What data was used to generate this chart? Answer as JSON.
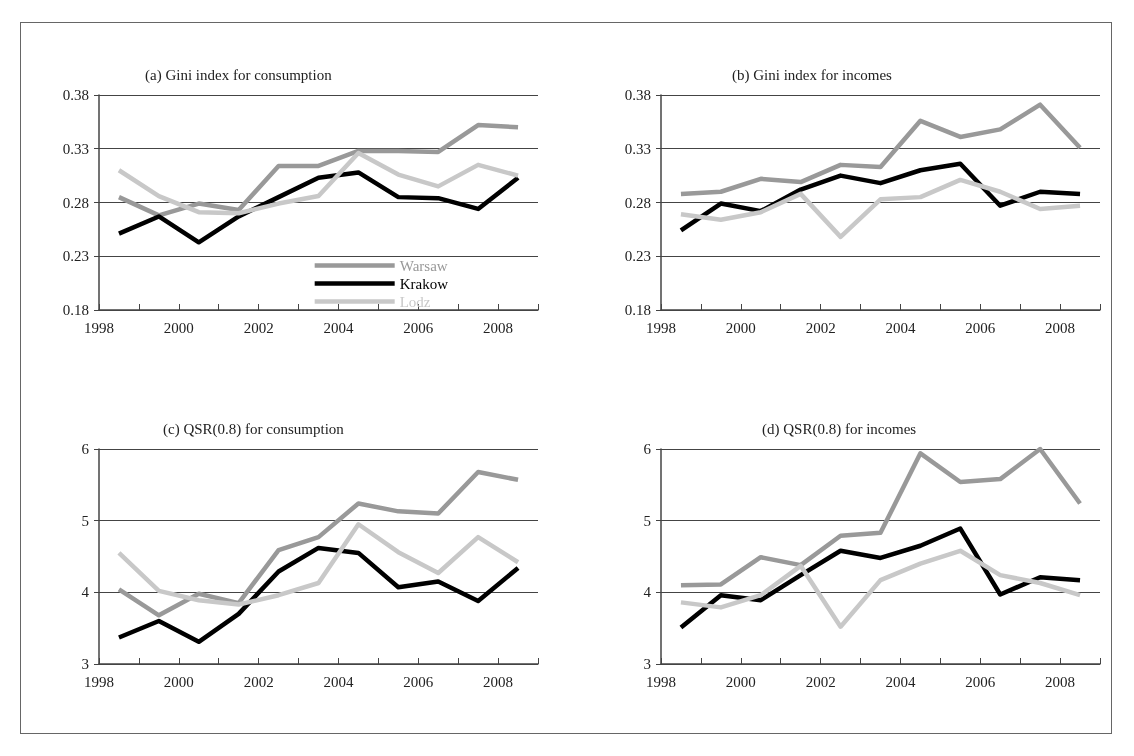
{
  "chart_data": [
    {
      "type": "line",
      "title": "(a) Gini index for consumption",
      "x": [
        1998.5,
        1999.5,
        2000.5,
        2001.5,
        2002.5,
        2003.5,
        2004.5,
        2005.5,
        2006.5,
        2007.5,
        2008.5
      ],
      "xlim": [
        1998,
        2009
      ],
      "xticks": [
        1998,
        {
          "value": 1999,
          "label": null
        },
        2000,
        {
          "value": 2001,
          "label": null
        },
        2002,
        {
          "value": 2003,
          "label": null
        },
        2004,
        {
          "value": 2005,
          "label": null
        },
        2006,
        {
          "value": 2007,
          "label": null
        },
        2008,
        {
          "value": 2009,
          "label": null
        }
      ],
      "ylim": [
        0.18,
        0.38
      ],
      "yticks": [
        0.18,
        0.23,
        0.28,
        0.33,
        0.38
      ],
      "grid": "y",
      "legend": "bottom right",
      "marker": "none",
      "line_style": "solid",
      "series": [
        {
          "name": "Warsaw",
          "color": "#999999",
          "values": [
            0.285,
            0.268,
            0.279,
            0.273,
            0.314,
            0.314,
            0.328,
            0.328,
            0.327,
            0.352,
            0.35
          ]
        },
        {
          "name": "Krakow",
          "color": "#000000",
          "values": [
            0.251,
            0.267,
            0.243,
            0.267,
            0.285,
            0.303,
            0.308,
            0.285,
            0.284,
            0.274,
            0.303
          ]
        },
        {
          "name": "Lodz",
          "color": "#c8c8c8",
          "values": [
            0.31,
            0.286,
            0.271,
            0.27,
            0.279,
            0.286,
            0.326,
            0.306,
            0.295,
            0.315,
            0.305
          ]
        }
      ]
    },
    {
      "type": "line",
      "title": "(b) Gini index for incomes",
      "x": [
        1998.5,
        1999.5,
        2000.5,
        2001.5,
        2002.5,
        2003.5,
        2004.5,
        2005.5,
        2006.5,
        2007.5,
        2008.5
      ],
      "xlim": [
        1998,
        2009
      ],
      "xticks": [
        1998,
        {
          "value": 1999,
          "label": null
        },
        2000,
        {
          "value": 2001,
          "label": null
        },
        2002,
        {
          "value": 2003,
          "label": null
        },
        2004,
        {
          "value": 2005,
          "label": null
        },
        2006,
        {
          "value": 2007,
          "label": null
        },
        2008,
        {
          "value": 2009,
          "label": null
        }
      ],
      "ylim": [
        0.18,
        0.38
      ],
      "yticks": [
        0.18,
        0.23,
        0.28,
        0.33,
        0.38
      ],
      "grid": "y",
      "marker": "none",
      "line_style": "solid",
      "series": [
        {
          "color": "#999999",
          "values": [
            0.288,
            0.29,
            0.302,
            0.299,
            0.315,
            0.313,
            0.356,
            0.341,
            0.348,
            0.371,
            0.331
          ]
        },
        {
          "color": "#000000",
          "values": [
            0.254,
            0.279,
            0.272,
            0.292,
            0.305,
            0.298,
            0.31,
            0.316,
            0.277,
            0.29,
            0.288
          ]
        },
        {
          "color": "#c8c8c8",
          "values": [
            0.269,
            0.264,
            0.271,
            0.288,
            0.248,
            0.283,
            0.285,
            0.301,
            0.29,
            0.274,
            0.277
          ]
        }
      ]
    },
    {
      "type": "line",
      "title": "(c) QSR(0.8) for consumption",
      "x": [
        1998.5,
        1999.5,
        2000.5,
        2001.5,
        2002.5,
        2003.5,
        2004.5,
        2005.5,
        2006.5,
        2007.5,
        2008.5
      ],
      "xlim": [
        1998,
        2009
      ],
      "xticks": [
        1998,
        {
          "value": 1999,
          "label": null
        },
        2000,
        {
          "value": 2001,
          "label": null
        },
        2002,
        {
          "value": 2003,
          "label": null
        },
        2004,
        {
          "value": 2005,
          "label": null
        },
        2006,
        {
          "value": 2007,
          "label": null
        },
        2008,
        {
          "value": 2009,
          "label": null
        }
      ],
      "ylim": [
        3,
        6
      ],
      "yticks": [
        3,
        4,
        5,
        6
      ],
      "grid": "y",
      "marker": "none",
      "line_style": "solid",
      "series": [
        {
          "color": "#999999",
          "values": [
            4.04,
            3.68,
            3.98,
            3.85,
            4.59,
            4.77,
            5.24,
            5.13,
            5.1,
            5.68,
            5.57
          ]
        },
        {
          "color": "#000000",
          "values": [
            3.37,
            3.6,
            3.31,
            3.7,
            4.29,
            4.62,
            4.55,
            4.07,
            4.15,
            3.88,
            4.34
          ]
        },
        {
          "color": "#c8c8c8",
          "values": [
            4.55,
            4.02,
            3.89,
            3.83,
            3.96,
            4.13,
            4.95,
            4.56,
            4.27,
            4.77,
            4.42
          ]
        }
      ]
    },
    {
      "type": "line",
      "title": "(d) QSR(0.8) for incomes",
      "x": [
        1998.5,
        1999.5,
        2000.5,
        2001.5,
        2002.5,
        2003.5,
        2004.5,
        2005.5,
        2006.5,
        2007.5,
        2008.5
      ],
      "xlim": [
        1998,
        2009
      ],
      "xticks": [
        1998,
        {
          "value": 1999,
          "label": null
        },
        2000,
        {
          "value": 2001,
          "label": null
        },
        2002,
        {
          "value": 2003,
          "label": null
        },
        2004,
        {
          "value": 2005,
          "label": null
        },
        2006,
        {
          "value": 2007,
          "label": null
        },
        2008,
        {
          "value": 2009,
          "label": null
        }
      ],
      "ylim": [
        3,
        6
      ],
      "yticks": [
        3,
        4,
        5,
        6
      ],
      "grid": "y",
      "marker": "none",
      "line_style": "solid",
      "series": [
        {
          "color": "#999999",
          "values": [
            4.1,
            4.11,
            4.49,
            4.38,
            4.79,
            4.83,
            5.94,
            5.54,
            5.58,
            6.0,
            5.24
          ]
        },
        {
          "color": "#000000",
          "values": [
            3.51,
            3.96,
            3.89,
            4.24,
            4.58,
            4.48,
            4.65,
            4.89,
            3.97,
            4.21,
            4.17
          ]
        },
        {
          "color": "#c8c8c8",
          "values": [
            3.86,
            3.79,
            3.96,
            4.37,
            3.52,
            4.17,
            4.4,
            4.58,
            4.24,
            4.13,
            3.96
          ]
        }
      ]
    }
  ]
}
